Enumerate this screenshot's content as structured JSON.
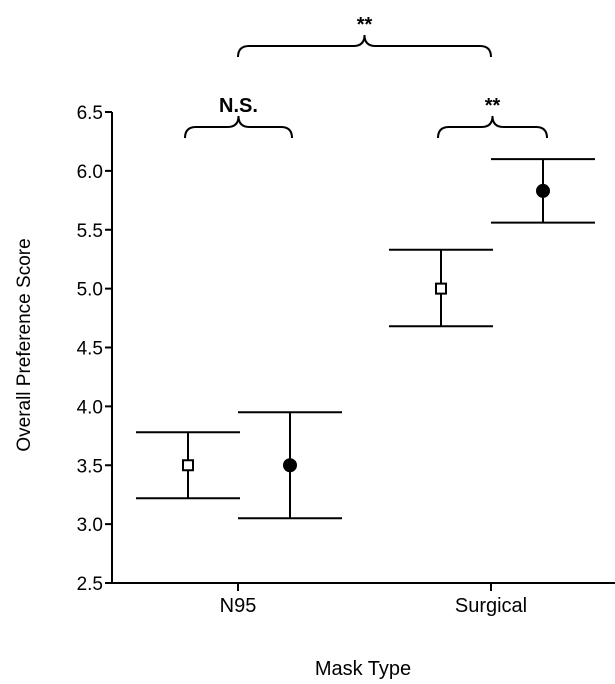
{
  "chart_data": {
    "type": "scatter",
    "title": "",
    "xlabel": "Mask Type",
    "ylabel": "Overall Preference Score",
    "ylim": [
      2.5,
      6.5
    ],
    "yticks": [
      "2.5",
      "3.0",
      "3.5",
      "4.0",
      "4.5",
      "5.0",
      "5.5",
      "6.0",
      "6.5"
    ],
    "categories": [
      "N95",
      "Surgical"
    ],
    "grid": false,
    "legend": "none",
    "series": [
      {
        "marker": "open-square",
        "points": [
          {
            "category": "N95",
            "y": 3.5,
            "lower": 3.22,
            "upper": 3.78
          },
          {
            "category": "Surgical",
            "y": 5.0,
            "lower": 4.68,
            "upper": 5.33
          }
        ]
      },
      {
        "marker": "filled-circle",
        "points": [
          {
            "category": "N95",
            "y": 3.5,
            "lower": 3.05,
            "upper": 3.95
          },
          {
            "category": "Surgical",
            "y": 5.83,
            "lower": 5.56,
            "upper": 6.1
          }
        ]
      }
    ],
    "annotations": [
      {
        "label": "N.S.",
        "scope": "within N95"
      },
      {
        "label": "**",
        "scope": "within Surgical"
      },
      {
        "label": "**",
        "scope": "N95 vs Surgical"
      }
    ]
  }
}
